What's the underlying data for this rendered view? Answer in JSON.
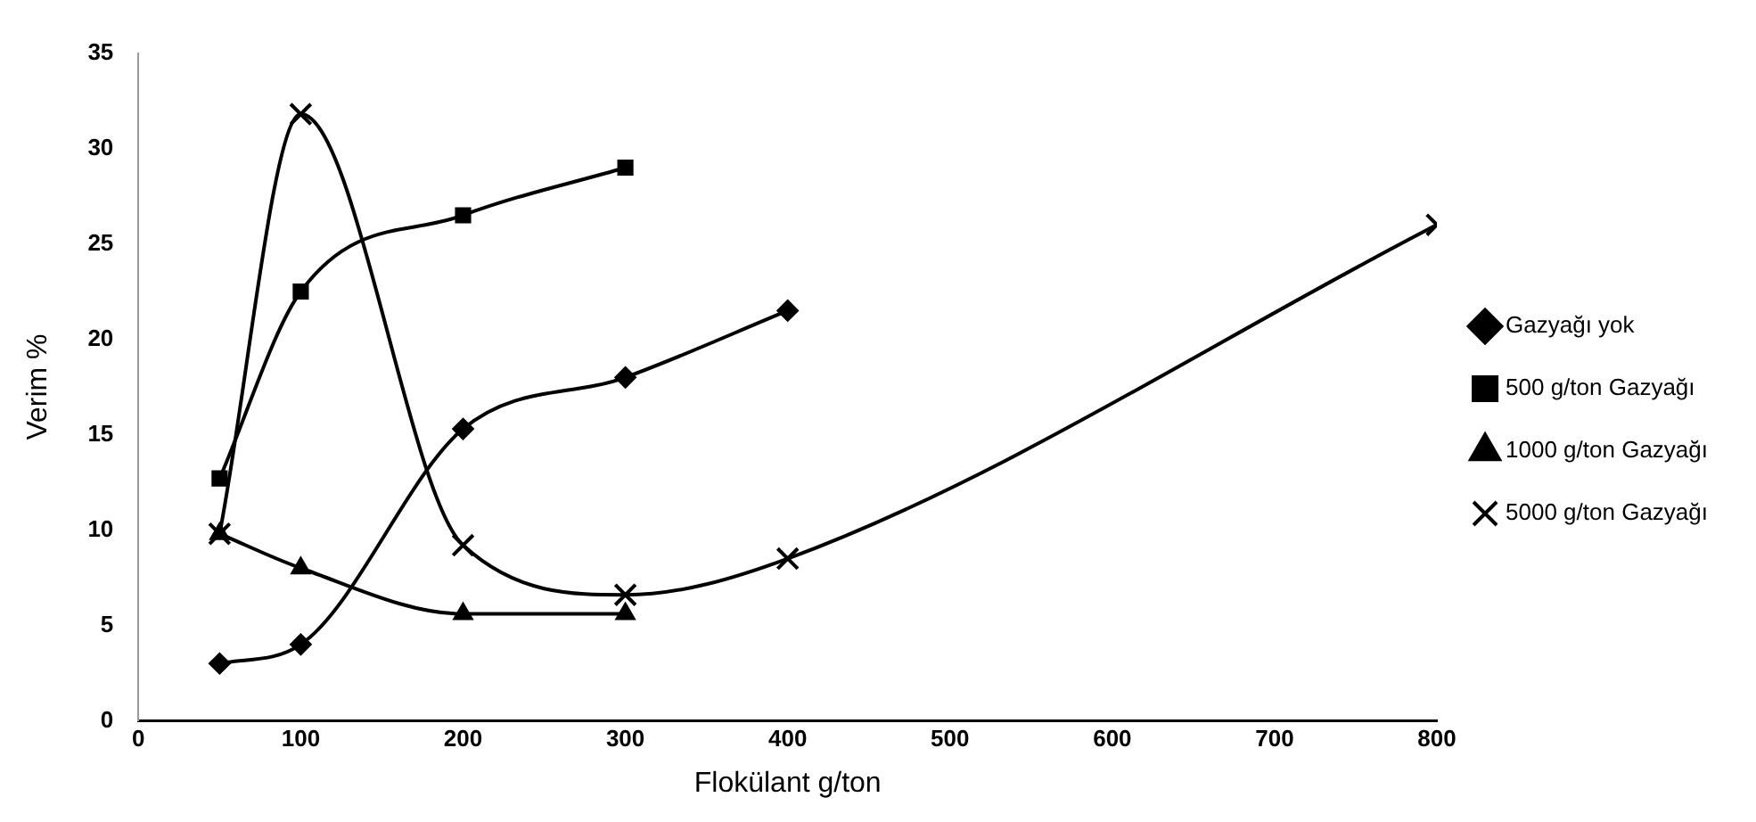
{
  "chart_data": {
    "type": "line",
    "xlabel": "Flokülant g/ton",
    "ylabel": "Verim %",
    "xlim": [
      0,
      800
    ],
    "xticks": [
      0,
      100,
      200,
      300,
      400,
      500,
      600,
      700,
      800
    ],
    "ylim": [
      0,
      35
    ],
    "yticks": [
      0,
      5,
      10,
      15,
      20,
      25,
      30,
      35
    ],
    "grid": false,
    "legend": "right",
    "series": [
      {
        "name": "Gazyağı yok",
        "color": "#000000",
        "marker": "diamond",
        "x": [
          50,
          100,
          200,
          300,
          400
        ],
        "values": [
          3,
          4,
          15.3,
          18,
          21.5
        ]
      },
      {
        "name": "500 g/ton Gazyağı",
        "color": "#000000",
        "marker": "square",
        "x": [
          50,
          100,
          200,
          300
        ],
        "values": [
          12.7,
          22.5,
          26.5,
          29
        ]
      },
      {
        "name": "1000 g/ton Gazyağı",
        "color": "#000000",
        "marker": "triangle",
        "x": [
          50,
          100,
          200,
          300
        ],
        "values": [
          9.8,
          8,
          5.6,
          5.6
        ]
      },
      {
        "name": "5000 g/ton Gazyağı",
        "color": "#000000",
        "marker": "cross",
        "x": [
          50,
          100,
          200,
          300,
          400,
          800
        ],
        "values": [
          9.8,
          31.8,
          9.2,
          6.6,
          8.5,
          26
        ]
      }
    ]
  }
}
